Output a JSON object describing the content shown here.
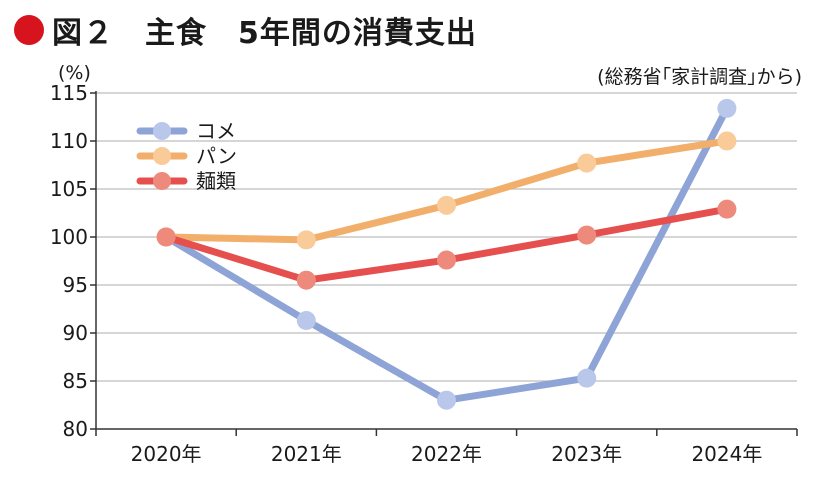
{
  "header": {
    "title": "図２　主食　5年間の消費支出",
    "unit": "(%)",
    "source": "(総務省｢家計調査｣から)"
  },
  "colors": {
    "title_dot": "#d7141e",
    "grid": "#bdbdbd",
    "axis": "#333333"
  },
  "chart_data": {
    "type": "line",
    "title": "図２　主食　5年間の消費支出",
    "ylabel": "(%)",
    "xlabel": "",
    "categories": [
      "2020年",
      "2021年",
      "2022年",
      "2023年",
      "2024年"
    ],
    "ylim": [
      80,
      115
    ],
    "yticks": [
      80,
      85,
      90,
      95,
      100,
      105,
      110,
      115
    ],
    "grid": true,
    "legend_position": "top-left",
    "series": [
      {
        "name": "コメ",
        "values": [
          100,
          91.3,
          83.0,
          85.3,
          113.4
        ],
        "line_color": "#8ea4d6",
        "marker_color": "#b9c7ea"
      },
      {
        "name": "パン",
        "values": [
          100,
          99.7,
          103.3,
          107.7,
          110.0
        ],
        "line_color": "#f2ae6b",
        "marker_color": "#f8cb98"
      },
      {
        "name": "麺類",
        "values": [
          100,
          95.5,
          97.6,
          100.2,
          102.9
        ],
        "line_color": "#e5504f",
        "marker_color": "#ee8a7c"
      }
    ]
  }
}
